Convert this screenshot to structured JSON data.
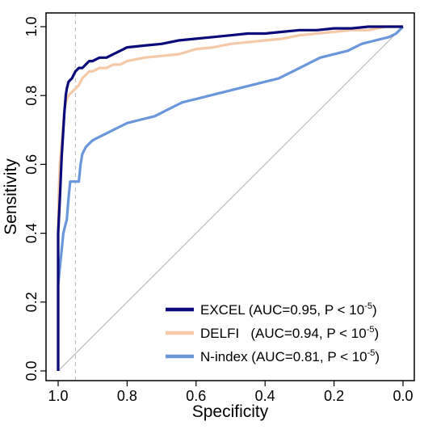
{
  "chart_data": {
    "type": "line",
    "title": "",
    "xlabel": "Specificity",
    "ylabel": "Sensitivity",
    "xlim": [
      1.0,
      0.0
    ],
    "ylim": [
      0.0,
      1.0
    ],
    "x_reversed": true,
    "x_ticks": [
      1.0,
      0.8,
      0.6,
      0.4,
      0.2,
      0.0
    ],
    "x_tick_labels": [
      "1.0",
      "0.8",
      "0.6",
      "0.4",
      "0.2",
      "0.0"
    ],
    "y_ticks": [
      0.0,
      0.2,
      0.4,
      0.6,
      0.8,
      1.0
    ],
    "y_tick_labels": [
      "0.0",
      "0.2",
      "0.4",
      "0.6",
      "0.8",
      "1.0"
    ],
    "grid": false,
    "reference_diagonal": true,
    "reference_vline_specificity": 0.95,
    "legend_position": "bottom-right",
    "series": [
      {
        "name": "EXCEL",
        "label_main": "EXCEL (AUC=0.95, P < 10",
        "label_exp": "-5",
        "label_end": ")",
        "color": "#0a0a7a",
        "points": [
          [
            1.0,
            0.0
          ],
          [
            1.0,
            0.4
          ],
          [
            0.995,
            0.5
          ],
          [
            0.99,
            0.62
          ],
          [
            0.985,
            0.7
          ],
          [
            0.982,
            0.75
          ],
          [
            0.978,
            0.8
          ],
          [
            0.975,
            0.82
          ],
          [
            0.97,
            0.84
          ],
          [
            0.96,
            0.85
          ],
          [
            0.955,
            0.86
          ],
          [
            0.95,
            0.87
          ],
          [
            0.94,
            0.88
          ],
          [
            0.93,
            0.88
          ],
          [
            0.92,
            0.89
          ],
          [
            0.91,
            0.9
          ],
          [
            0.9,
            0.9
          ],
          [
            0.88,
            0.91
          ],
          [
            0.86,
            0.91
          ],
          [
            0.84,
            0.92
          ],
          [
            0.82,
            0.93
          ],
          [
            0.8,
            0.94
          ],
          [
            0.75,
            0.945
          ],
          [
            0.7,
            0.95
          ],
          [
            0.65,
            0.96
          ],
          [
            0.6,
            0.965
          ],
          [
            0.55,
            0.97
          ],
          [
            0.5,
            0.975
          ],
          [
            0.45,
            0.98
          ],
          [
            0.4,
            0.98
          ],
          [
            0.35,
            0.985
          ],
          [
            0.3,
            0.99
          ],
          [
            0.25,
            0.99
          ],
          [
            0.2,
            0.995
          ],
          [
            0.15,
            0.995
          ],
          [
            0.1,
            1.0
          ],
          [
            0.0,
            1.0
          ]
        ]
      },
      {
        "name": "DELFI",
        "label_main": "DELFI   (AUC=0.94, P < 10",
        "label_exp": "-5",
        "label_end": ")",
        "color": "#f5c8a8",
        "points": [
          [
            1.0,
            0.0
          ],
          [
            1.0,
            0.42
          ],
          [
            0.998,
            0.52
          ],
          [
            0.995,
            0.6
          ],
          [
            0.99,
            0.66
          ],
          [
            0.985,
            0.72
          ],
          [
            0.982,
            0.76
          ],
          [
            0.975,
            0.79
          ],
          [
            0.97,
            0.8
          ],
          [
            0.96,
            0.81
          ],
          [
            0.95,
            0.82
          ],
          [
            0.94,
            0.83
          ],
          [
            0.93,
            0.85
          ],
          [
            0.92,
            0.86
          ],
          [
            0.91,
            0.87
          ],
          [
            0.9,
            0.87
          ],
          [
            0.88,
            0.88
          ],
          [
            0.86,
            0.88
          ],
          [
            0.84,
            0.89
          ],
          [
            0.82,
            0.89
          ],
          [
            0.8,
            0.9
          ],
          [
            0.75,
            0.91
          ],
          [
            0.7,
            0.915
          ],
          [
            0.65,
            0.92
          ],
          [
            0.6,
            0.935
          ],
          [
            0.55,
            0.94
          ],
          [
            0.5,
            0.95
          ],
          [
            0.45,
            0.955
          ],
          [
            0.4,
            0.96
          ],
          [
            0.35,
            0.965
          ],
          [
            0.3,
            0.975
          ],
          [
            0.25,
            0.98
          ],
          [
            0.2,
            0.985
          ],
          [
            0.15,
            0.99
          ],
          [
            0.1,
            0.99
          ],
          [
            0.05,
            1.0
          ],
          [
            0.0,
            1.0
          ]
        ]
      },
      {
        "name": "N-index",
        "label_main": "N-index (AUC=0.81, P < 10",
        "label_exp": "-5",
        "label_end": ")",
        "color": "#6a96dc",
        "points": [
          [
            1.0,
            0.0
          ],
          [
            1.0,
            0.25
          ],
          [
            0.995,
            0.3
          ],
          [
            0.99,
            0.35
          ],
          [
            0.985,
            0.4
          ],
          [
            0.98,
            0.42
          ],
          [
            0.975,
            0.44
          ],
          [
            0.97,
            0.5
          ],
          [
            0.965,
            0.55
          ],
          [
            0.94,
            0.55
          ],
          [
            0.935,
            0.6
          ],
          [
            0.93,
            0.63
          ],
          [
            0.92,
            0.65
          ],
          [
            0.91,
            0.66
          ],
          [
            0.9,
            0.67
          ],
          [
            0.88,
            0.68
          ],
          [
            0.86,
            0.69
          ],
          [
            0.84,
            0.7
          ],
          [
            0.82,
            0.71
          ],
          [
            0.8,
            0.72
          ],
          [
            0.76,
            0.73
          ],
          [
            0.72,
            0.74
          ],
          [
            0.68,
            0.76
          ],
          [
            0.64,
            0.78
          ],
          [
            0.6,
            0.79
          ],
          [
            0.56,
            0.8
          ],
          [
            0.52,
            0.81
          ],
          [
            0.48,
            0.82
          ],
          [
            0.44,
            0.83
          ],
          [
            0.4,
            0.84
          ],
          [
            0.36,
            0.85
          ],
          [
            0.32,
            0.87
          ],
          [
            0.28,
            0.89
          ],
          [
            0.24,
            0.91
          ],
          [
            0.2,
            0.92
          ],
          [
            0.16,
            0.93
          ],
          [
            0.12,
            0.95
          ],
          [
            0.08,
            0.96
          ],
          [
            0.04,
            0.97
          ],
          [
            0.02,
            0.98
          ],
          [
            0.0,
            1.0
          ]
        ]
      }
    ]
  }
}
